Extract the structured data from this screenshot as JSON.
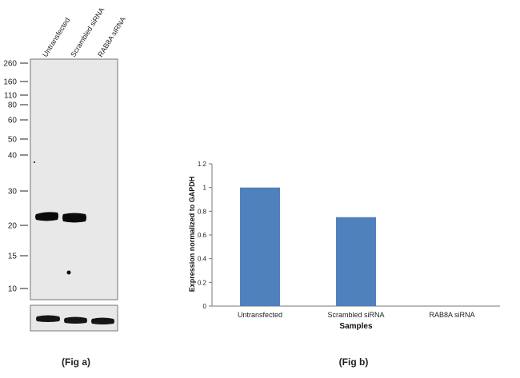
{
  "western_blot": {
    "lane_labels": [
      "Untransfected",
      "Scrambled siRNA",
      "RAB8A siRNA"
    ],
    "markers": [
      "260",
      "160",
      "110",
      "80",
      "60",
      "50",
      "40",
      "30",
      "20",
      "15",
      "10"
    ],
    "caption": "(Fig a)"
  },
  "bar_chart": {
    "caption": "(Fig b)"
  },
  "chart_data": {
    "type": "bar",
    "categories": [
      "Untransfected",
      "Scrambled siRNA",
      "RAB8A siRNA"
    ],
    "values": [
      1.0,
      0.75,
      0.0
    ],
    "title": "",
    "xlabel": "Samples",
    "ylabel": "Expression  normalized to GAPDH",
    "ylim": [
      0,
      1.2
    ],
    "yticks": [
      "0",
      "0.2",
      "0.4",
      "0.6",
      "0.8",
      "1",
      "1.2"
    ],
    "bar_color": "#4f81bd",
    "grid": false,
    "legend": "none"
  }
}
